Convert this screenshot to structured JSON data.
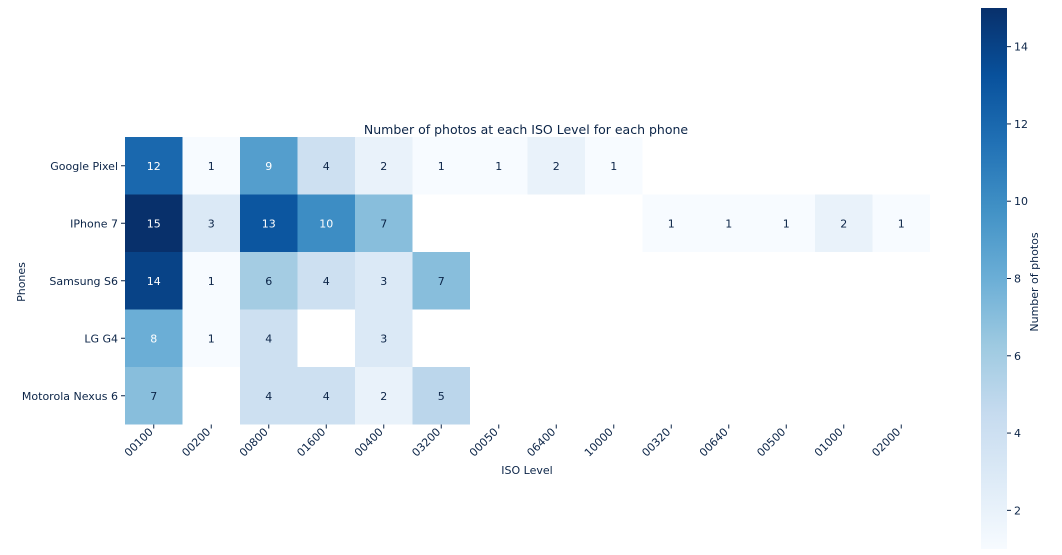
{
  "chart_data": {
    "type": "heatmap",
    "title": "Number of photos at each ISO Level for each phone",
    "xlabel": "ISO Level",
    "ylabel": "Phones",
    "colorbar_label": "Number of photos",
    "colormap": "Blues",
    "x_categories": [
      "00100",
      "00200",
      "00800",
      "01600",
      "00400",
      "03200",
      "00050",
      "06400",
      "10000",
      "00320",
      "00640",
      "00500",
      "01000",
      "02000"
    ],
    "y_categories": [
      "Google Pixel",
      "IPhone 7",
      "Samsung S6",
      "LG G4",
      "Motorola Nexus 6"
    ],
    "values": [
      [
        12,
        1,
        9,
        4,
        2,
        1,
        1,
        2,
        1,
        null,
        null,
        null,
        null,
        null
      ],
      [
        15,
        3,
        13,
        10,
        7,
        null,
        null,
        null,
        null,
        1,
        1,
        1,
        2,
        1
      ],
      [
        14,
        1,
        6,
        4,
        3,
        7,
        null,
        null,
        null,
        null,
        null,
        null,
        null,
        null
      ],
      [
        8,
        1,
        4,
        null,
        3,
        null,
        null,
        null,
        null,
        null,
        null,
        null,
        null,
        null
      ],
      [
        7,
        null,
        4,
        4,
        2,
        5,
        null,
        null,
        null,
        null,
        null,
        null,
        null,
        null
      ]
    ],
    "color_range": [
      1,
      15
    ],
    "colorbar_ticks": [
      "2",
      "4",
      "6",
      "8",
      "10",
      "12",
      "14"
    ],
    "grid": false,
    "legend": "colorbar-right"
  }
}
